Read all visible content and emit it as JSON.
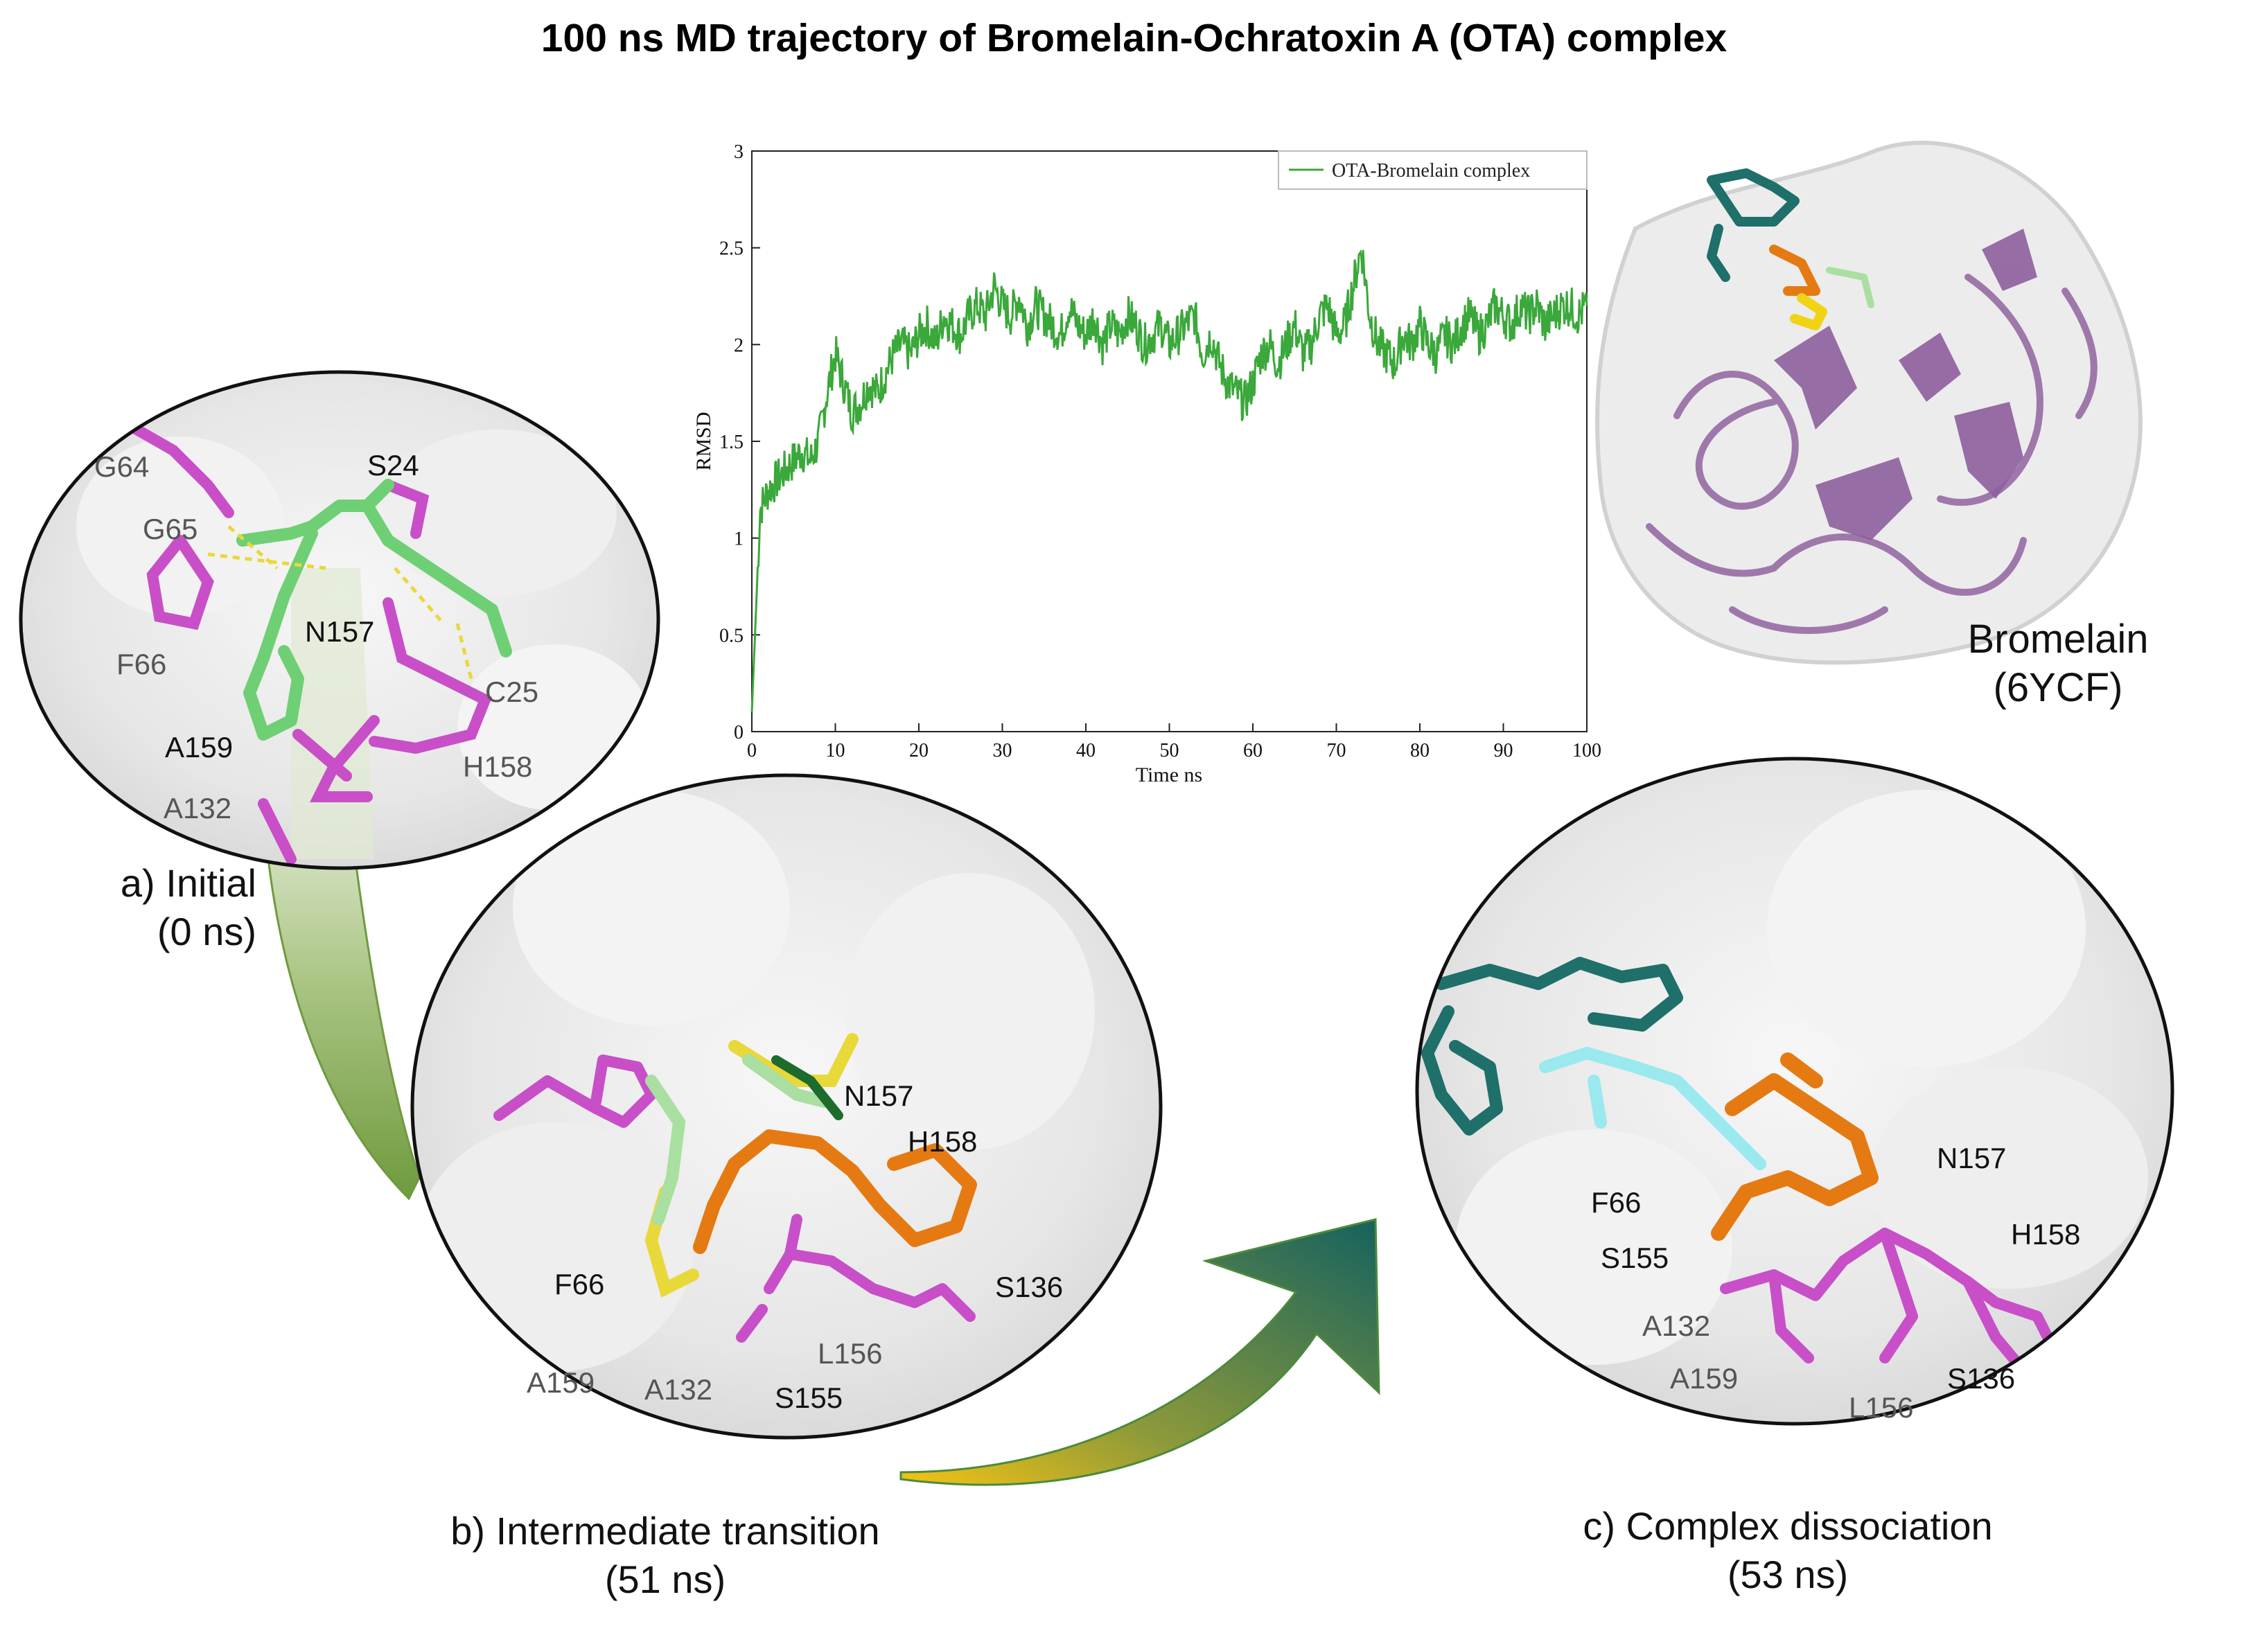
{
  "title": "100 ns MD trajectory of Bromelain-Ochratoxin A (OTA) complex",
  "chart_data": {
    "type": "line",
    "title": "",
    "xlabel": "Time ns",
    "ylabel": "RMSD",
    "xlim": [
      0,
      100
    ],
    "ylim": [
      0,
      3
    ],
    "xticks": [
      "0",
      "10",
      "20",
      "30",
      "40",
      "50",
      "60",
      "70",
      "80",
      "90",
      "100"
    ],
    "yticks": [
      "0",
      "0.5",
      "1",
      "1.5",
      "2",
      "2.5",
      "3"
    ],
    "legend": "top-right",
    "series": [
      {
        "name": "OTA-Bromelain complex",
        "color": "#3aa83a",
        "x": [
          0,
          1,
          2,
          3,
          4,
          5,
          6,
          7,
          8,
          9,
          10,
          11,
          12,
          13,
          14,
          15,
          16,
          17,
          18,
          19,
          20,
          21,
          22,
          23,
          24,
          25,
          26,
          27,
          28,
          29,
          30,
          31,
          32,
          33,
          34,
          35,
          36,
          37,
          38,
          39,
          40,
          41,
          42,
          43,
          44,
          45,
          46,
          47,
          48,
          49,
          50,
          51,
          52,
          53,
          54,
          55,
          56,
          57,
          58,
          59,
          60,
          61,
          62,
          63,
          64,
          65,
          66,
          67,
          68,
          69,
          70,
          71,
          72,
          73,
          74,
          75,
          76,
          77,
          78,
          79,
          80,
          81,
          82,
          83,
          84,
          85,
          86,
          87,
          88,
          89,
          90,
          91,
          92,
          93,
          94,
          95,
          96,
          97,
          98,
          99,
          100
        ],
        "y": [
          0.1,
          1.15,
          1.25,
          1.3,
          1.35,
          1.4,
          1.45,
          1.4,
          1.5,
          1.75,
          1.95,
          1.8,
          1.65,
          1.7,
          1.8,
          1.75,
          1.85,
          1.95,
          2.0,
          1.95,
          2.05,
          2.1,
          2.0,
          2.15,
          2.1,
          2.05,
          2.15,
          2.2,
          2.15,
          2.3,
          2.2,
          2.15,
          2.25,
          2.1,
          2.2,
          2.15,
          2.1,
          2.05,
          2.2,
          2.1,
          2.05,
          2.15,
          2.0,
          2.1,
          2.05,
          2.15,
          2.1,
          2.0,
          2.05,
          2.1,
          2.0,
          2.05,
          2.1,
          2.15,
          1.95,
          2.05,
          1.9,
          1.8,
          1.75,
          1.7,
          1.8,
          1.95,
          2.0,
          1.9,
          2.0,
          2.1,
          1.95,
          2.0,
          2.15,
          2.2,
          2.05,
          2.1,
          2.3,
          2.5,
          2.15,
          2.0,
          1.95,
          1.9,
          2.05,
          2.0,
          2.1,
          2.0,
          1.95,
          2.05,
          2.0,
          2.1,
          2.15,
          2.05,
          2.1,
          2.2,
          2.15,
          2.1,
          2.2,
          2.15,
          2.2,
          2.1,
          2.15,
          2.2,
          2.2,
          2.15,
          2.2
        ]
      }
    ]
  },
  "panels": {
    "a": {
      "caption_line1": "a) Initial",
      "caption_line2": "(0 ns)",
      "residues": [
        "G64",
        "S24",
        "G65",
        "N157",
        "F66",
        "C25",
        "A159",
        "H158",
        "A132"
      ]
    },
    "b": {
      "caption_line1": "b) Intermediate transition",
      "caption_line2": "(51 ns)",
      "residues": [
        "N157",
        "H158",
        "F66",
        "S136",
        "L156",
        "A159",
        "A132",
        "S155"
      ]
    },
    "c": {
      "caption_line1": "c) Complex dissociation",
      "caption_line2": "(53 ns)",
      "residues": [
        "N157",
        "F66",
        "H158",
        "S155",
        "A132",
        "A159",
        "S136",
        "L156"
      ]
    }
  },
  "protein": {
    "name": "Bromelain",
    "pdb": "(6YCF)"
  },
  "colors": {
    "ligand_initial": "#6fcf74",
    "residue": "#c84fc8",
    "ligand_orange": "#e57a12",
    "ligand_teal": "#1f6f6a",
    "ligand_cyan": "#9ae9ee",
    "protein_ribbon": "#9b72a8",
    "arrow_green": "#7aa84a",
    "arrow_teal": "#1f6b66",
    "arrow_yellow": "#f2c21a"
  }
}
